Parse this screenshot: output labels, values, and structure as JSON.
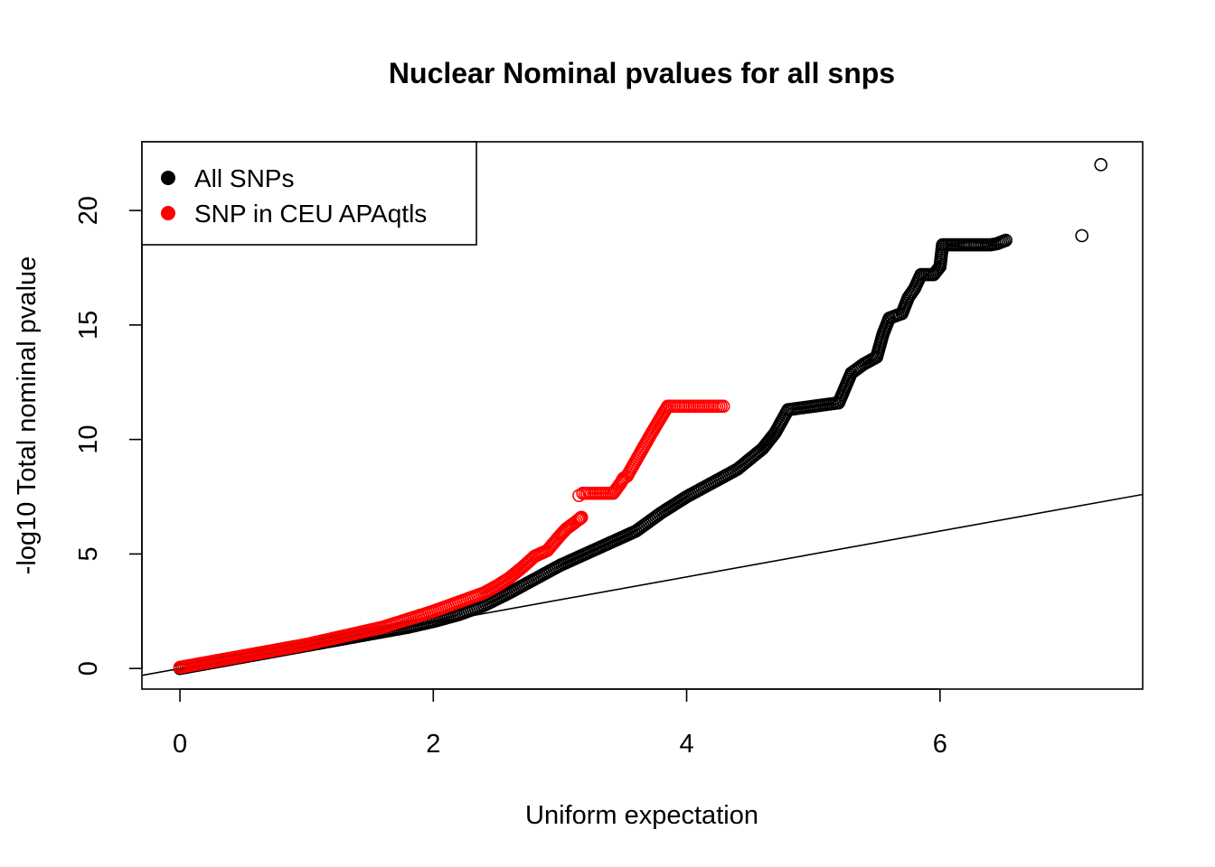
{
  "chart_data": {
    "type": "scatter",
    "title": "Nuclear Nominal pvalues for all snps",
    "xlabel": "Uniform expectation",
    "ylabel": "-log10 Total nominal pvalue",
    "xlim": [
      -0.3,
      7.6
    ],
    "ylim": [
      -0.9,
      23.0
    ],
    "x_ticks": [
      0,
      2,
      4,
      6
    ],
    "y_ticks": [
      0,
      5,
      10,
      15,
      20
    ],
    "grid": false,
    "legend_position": "top-left",
    "reference_line": {
      "slope": 1,
      "intercept": 0,
      "color": "#000000"
    },
    "series": [
      {
        "name": "All SNPs",
        "color": "#000000",
        "marker": "open-circle",
        "points": [
          [
            0.0,
            0.0
          ],
          [
            0.2,
            0.2
          ],
          [
            0.4,
            0.4
          ],
          [
            0.6,
            0.6
          ],
          [
            0.8,
            0.8
          ],
          [
            1.0,
            1.0
          ],
          [
            1.2,
            1.2
          ],
          [
            1.4,
            1.4
          ],
          [
            1.6,
            1.6
          ],
          [
            1.8,
            1.8
          ],
          [
            2.0,
            2.05
          ],
          [
            2.2,
            2.35
          ],
          [
            2.4,
            2.75
          ],
          [
            2.6,
            3.3
          ],
          [
            2.8,
            3.9
          ],
          [
            3.0,
            4.5
          ],
          [
            3.2,
            5.0
          ],
          [
            3.4,
            5.5
          ],
          [
            3.6,
            6.0
          ],
          [
            3.8,
            6.8
          ],
          [
            4.0,
            7.5
          ],
          [
            4.2,
            8.1
          ],
          [
            4.4,
            8.7
          ],
          [
            4.6,
            9.6
          ],
          [
            4.7,
            10.3
          ],
          [
            4.8,
            11.3
          ],
          [
            5.0,
            11.45
          ],
          [
            5.2,
            11.6
          ],
          [
            5.3,
            12.9
          ],
          [
            5.4,
            13.3
          ],
          [
            5.5,
            13.6
          ],
          [
            5.55,
            14.6
          ],
          [
            5.6,
            15.3
          ],
          [
            5.7,
            15.5
          ],
          [
            5.75,
            16.2
          ],
          [
            5.8,
            16.6
          ],
          [
            5.85,
            17.2
          ],
          [
            5.95,
            17.2
          ],
          [
            6.0,
            17.55
          ],
          [
            6.02,
            18.5
          ],
          [
            6.12,
            18.5
          ],
          [
            6.2,
            18.5
          ],
          [
            6.29,
            18.5
          ],
          [
            6.4,
            18.5
          ],
          [
            6.45,
            18.55
          ],
          [
            6.52,
            18.7
          ],
          [
            7.12,
            18.9
          ],
          [
            7.27,
            22.0
          ]
        ]
      },
      {
        "name": "SNP in CEU APAqtls",
        "color": "#ff0000",
        "marker": "open-circle",
        "points": [
          [
            0.0,
            0.05
          ],
          [
            0.2,
            0.25
          ],
          [
            0.4,
            0.45
          ],
          [
            0.6,
            0.65
          ],
          [
            0.8,
            0.85
          ],
          [
            1.0,
            1.05
          ],
          [
            1.2,
            1.3
          ],
          [
            1.4,
            1.55
          ],
          [
            1.6,
            1.8
          ],
          [
            1.8,
            2.15
          ],
          [
            2.0,
            2.5
          ],
          [
            2.2,
            2.9
          ],
          [
            2.4,
            3.3
          ],
          [
            2.5,
            3.6
          ],
          [
            2.6,
            3.95
          ],
          [
            2.7,
            4.4
          ],
          [
            2.8,
            4.9
          ],
          [
            2.9,
            5.15
          ],
          [
            3.0,
            5.8
          ],
          [
            3.05,
            6.1
          ],
          [
            3.1,
            6.3
          ],
          [
            3.17,
            6.6
          ],
          [
            3.15,
            7.55
          ],
          [
            3.18,
            7.65
          ],
          [
            3.42,
            7.65
          ],
          [
            3.48,
            8.1
          ],
          [
            3.5,
            8.3
          ],
          [
            3.53,
            8.4
          ],
          [
            3.72,
            10.25
          ],
          [
            3.85,
            11.45
          ],
          [
            4.29,
            11.45
          ]
        ]
      }
    ]
  }
}
